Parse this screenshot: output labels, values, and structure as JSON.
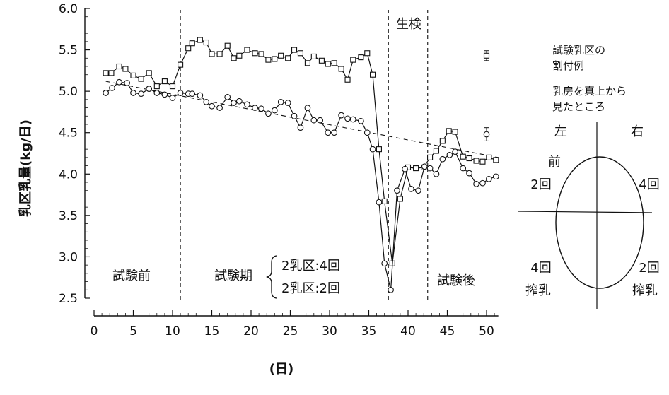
{
  "chart_data": {
    "type": "line",
    "xlabel": "(日)",
    "ylabel": "乳区乳量(kg/日)",
    "xlim": [
      0,
      52
    ],
    "ylim": [
      2.5,
      6.0
    ],
    "x_ticks": [
      0,
      5,
      10,
      15,
      20,
      25,
      30,
      35,
      40,
      45,
      50
    ],
    "y_ticks": [
      2.5,
      3.0,
      3.5,
      4.0,
      4.5,
      5.0,
      5.5,
      6.0
    ],
    "grid": false,
    "series": [
      {
        "marker": "square",
        "x": [
          1.5,
          2.2,
          3.2,
          4.0,
          5.0,
          6.0,
          7.0,
          8.0,
          9.0,
          10.0,
          11.0,
          12.0,
          12.5,
          13.5,
          14.3,
          15.0,
          16.0,
          17.0,
          17.8,
          18.5,
          19.5,
          20.5,
          21.3,
          22.2,
          23.0,
          23.8,
          24.7,
          25.5,
          26.3,
          27.2,
          28.0,
          29.0,
          29.8,
          30.6,
          31.5,
          32.3,
          33.0,
          34.0,
          34.8,
          35.5,
          36.3,
          37.0,
          38.0,
          39.0,
          40.0,
          41.0,
          42.0,
          42.8,
          43.6,
          44.4,
          45.2,
          46.0,
          47.0,
          47.8,
          48.7,
          49.5,
          50.3,
          51.2
        ],
        "values": [
          5.22,
          5.22,
          5.3,
          5.27,
          5.19,
          5.15,
          5.22,
          5.06,
          5.12,
          5.06,
          5.32,
          5.52,
          5.58,
          5.62,
          5.59,
          5.45,
          5.45,
          5.55,
          5.4,
          5.43,
          5.5,
          5.46,
          5.45,
          5.38,
          5.39,
          5.43,
          5.4,
          5.5,
          5.46,
          5.34,
          5.42,
          5.37,
          5.33,
          5.34,
          5.27,
          5.14,
          5.38,
          5.41,
          5.46,
          5.2,
          4.3,
          3.67,
          2.92,
          3.7,
          4.08,
          4.07,
          4.08,
          4.2,
          4.28,
          4.4,
          4.52,
          4.51,
          4.21,
          4.19,
          4.16,
          4.15,
          4.2,
          4.17
        ]
      },
      {
        "marker": "circle",
        "x": [
          1.5,
          2.3,
          3.2,
          4.2,
          5.0,
          6.0,
          7.0,
          8.0,
          9.0,
          10.0,
          11.0,
          12.0,
          12.5,
          13.5,
          14.3,
          15.0,
          16.0,
          17.0,
          17.8,
          18.5,
          19.5,
          20.5,
          21.3,
          22.2,
          23.0,
          23.8,
          24.7,
          25.5,
          26.3,
          27.2,
          28.0,
          28.8,
          29.8,
          30.6,
          31.5,
          32.3,
          33.0,
          34.0,
          34.8,
          35.5,
          36.3,
          37.0,
          37.8,
          38.6,
          39.6,
          40.4,
          41.3,
          42.1,
          42.8,
          43.6,
          44.4,
          45.3,
          46.0,
          47.0,
          47.8,
          48.7,
          49.5,
          50.3,
          51.2
        ],
        "values": [
          4.98,
          5.04,
          5.11,
          5.1,
          4.98,
          4.97,
          5.03,
          4.98,
          4.96,
          4.92,
          4.98,
          4.97,
          4.97,
          4.95,
          4.87,
          4.82,
          4.8,
          4.93,
          4.86,
          4.88,
          4.84,
          4.8,
          4.79,
          4.73,
          4.77,
          4.87,
          4.86,
          4.7,
          4.56,
          4.8,
          4.65,
          4.65,
          4.5,
          4.5,
          4.71,
          4.67,
          4.66,
          4.64,
          4.5,
          4.3,
          3.66,
          2.92,
          2.6,
          3.8,
          4.06,
          3.82,
          3.8,
          4.09,
          4.07,
          4.0,
          4.18,
          4.23,
          4.27,
          4.07,
          4.01,
          3.88,
          3.89,
          3.94,
          3.97
        ]
      }
    ],
    "trend_line": {
      "x": [
        1.5,
        51.5
      ],
      "values": [
        5.12,
        4.2
      ]
    },
    "error_points": [
      {
        "marker": "square",
        "x": 50.0,
        "value": 5.43,
        "err": 0.06
      },
      {
        "marker": "circle",
        "x": 50.0,
        "value": 4.48,
        "err": 0.08
      }
    ],
    "periods": [
      {
        "label": "試験前",
        "x_start": 0,
        "x_end": 11
      },
      {
        "label": "試験期",
        "x_start": 11,
        "x_end": 37.5,
        "sub": [
          "2乳区:4回",
          "2乳区:2回"
        ]
      },
      {
        "label": "生検",
        "x_start": 37.5,
        "x_end": 42.5
      },
      {
        "label": "試験後",
        "x_start": 42.5,
        "x_end": 52
      }
    ],
    "divider_x": [
      11,
      37.5,
      42.5
    ]
  },
  "legend_diagram": {
    "title_line1": "試験乳区の",
    "title_line2": "割付例",
    "desc_line1": "乳房を真上から",
    "desc_line2": "見たところ",
    "left": "左",
    "right": "右",
    "front": "前",
    "q_front_left": "2回",
    "q_front_right": "4回",
    "q_rear_left_line1": "4回",
    "q_rear_left_line2": "搾乳",
    "q_rear_right_line1": "2回",
    "q_rear_right_line2": "搾乳"
  }
}
